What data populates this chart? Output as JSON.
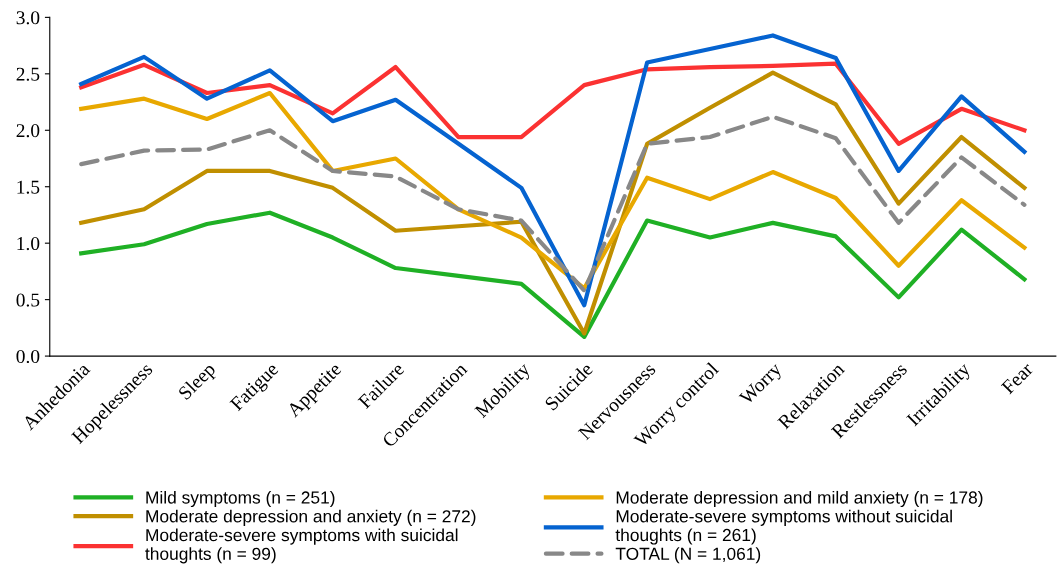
{
  "chart_data": {
    "type": "line",
    "categories": [
      "Anhedonia",
      "Hopelessness",
      "Sleep",
      "Fatigue",
      "Appetite",
      "Failure",
      "Concentration",
      "Mobility",
      "Suicide",
      "Nervousness",
      "Worry control",
      "Worry",
      "Relaxation",
      "Restlessness",
      "Irritability",
      "Fear"
    ],
    "series": [
      {
        "name": "Mild symptoms (n = 251)",
        "color": "#1fb025",
        "values": [
          0.91,
          0.99,
          1.17,
          1.27,
          1.05,
          0.78,
          0.71,
          0.64,
          0.17,
          1.2,
          1.05,
          1.18,
          1.06,
          0.52,
          1.12,
          0.68
        ]
      },
      {
        "name": "Moderate depression and anxiety (n = 272)",
        "color": "#c08f00",
        "values": [
          1.18,
          1.3,
          1.64,
          1.64,
          1.49,
          1.11,
          1.15,
          1.19,
          0.2,
          1.88,
          2.2,
          2.51,
          2.23,
          1.35,
          1.94,
          1.49
        ]
      },
      {
        "name": "Moderate-severe symptoms with suicidal\nthoughts (n = 99)",
        "color": "#fb3232",
        "values": [
          2.38,
          2.58,
          2.33,
          2.4,
          2.15,
          2.56,
          1.94,
          1.94,
          2.4,
          2.54,
          2.56,
          2.57,
          2.59,
          1.88,
          2.19,
          2.0
        ]
      },
      {
        "name": "Moderate depression and mild anxiety (n = 178)",
        "color": "#e8a800",
        "values": [
          2.19,
          2.28,
          2.1,
          2.33,
          1.64,
          1.75,
          1.3,
          1.05,
          0.6,
          1.58,
          1.39,
          1.63,
          1.4,
          0.8,
          1.38,
          0.96
        ]
      },
      {
        "name": "Moderate-severe symptoms without suicidal\nthoughts (n = 261)",
        "color": "#0563d0",
        "values": [
          2.41,
          2.65,
          2.28,
          2.53,
          2.08,
          2.27,
          1.88,
          1.49,
          0.45,
          2.6,
          2.72,
          2.84,
          2.64,
          1.64,
          2.3,
          1.81
        ]
      },
      {
        "name": "TOTAL (N = 1,061)",
        "color": "#888888",
        "line_style": "dashed",
        "values": [
          1.7,
          1.82,
          1.83,
          2.0,
          1.64,
          1.59,
          1.3,
          1.2,
          0.58,
          1.88,
          1.94,
          2.12,
          1.93,
          1.18,
          1.76,
          1.34
        ]
      }
    ],
    "ylim": [
      0,
      3.0
    ],
    "yticks": [
      {
        "value": 0,
        "label": "0.0"
      },
      {
        "value": 0.5,
        "label": "0.5"
      },
      {
        "value": 1.0,
        "label": "1.0"
      },
      {
        "value": 1.5,
        "label": "1.5"
      },
      {
        "value": 2.0,
        "label": "2.0"
      },
      {
        "value": 2.5,
        "label": "2.5"
      },
      {
        "value": 3.0,
        "label": "3.0"
      }
    ],
    "grid": false,
    "legend": "bottom",
    "marker": "none",
    "line_style": "solid"
  }
}
